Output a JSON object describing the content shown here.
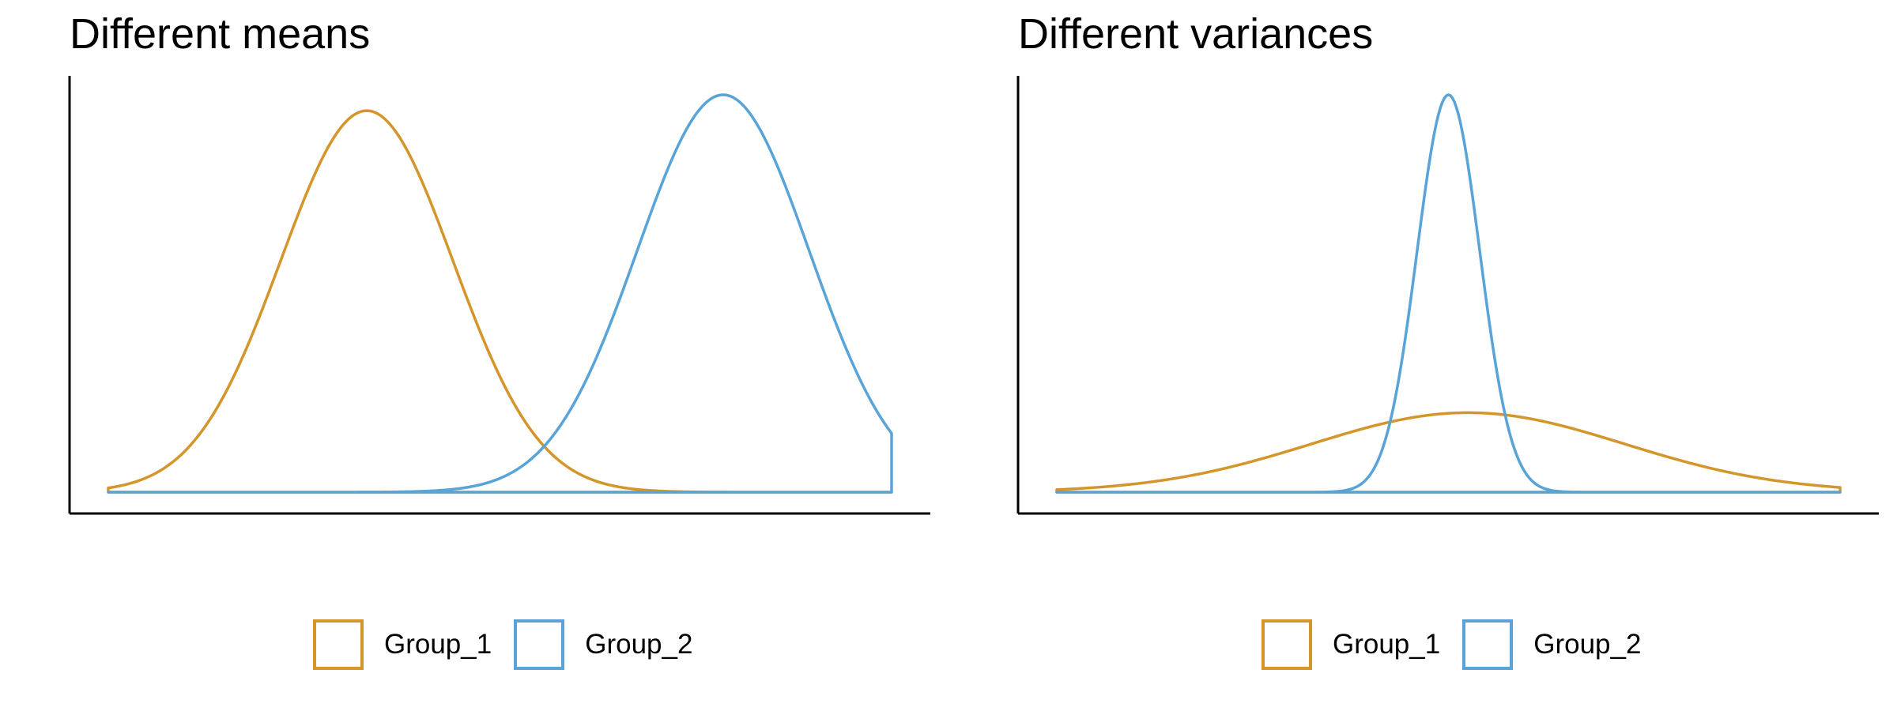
{
  "chart_data": [
    {
      "type": "area",
      "title": "Different means",
      "xlabel": "",
      "ylabel": "",
      "xlim": [
        -2.5,
        7.5
      ],
      "ylim": [
        0,
        1
      ],
      "grid": false,
      "legend": {
        "position": "bottom",
        "items": [
          "Group_1",
          "Group_2"
        ]
      },
      "series": [
        {
          "name": "Group_1",
          "color": "#D4952A",
          "mean": 0.8,
          "sd": 1.1,
          "peak": 0.96
        },
        {
          "name": "Group_2",
          "color": "#58A4D8",
          "mean": 5.35,
          "sd": 1.1,
          "peak": 1.0
        }
      ]
    },
    {
      "type": "area",
      "title": "Different variances",
      "xlabel": "",
      "ylabel": "",
      "xlim": [
        -5,
        5
      ],
      "ylim": [
        0,
        1
      ],
      "grid": false,
      "legend": {
        "position": "bottom",
        "items": [
          "Group_1",
          "Group_2"
        ]
      },
      "series": [
        {
          "name": "Group_1",
          "color": "#D4952A",
          "mean": 0.25,
          "sd": 2.0,
          "peak": 0.2
        },
        {
          "name": "Group_2",
          "color": "#58A4D8",
          "mean": 0.0,
          "sd": 0.4,
          "peak": 1.0
        }
      ]
    }
  ]
}
